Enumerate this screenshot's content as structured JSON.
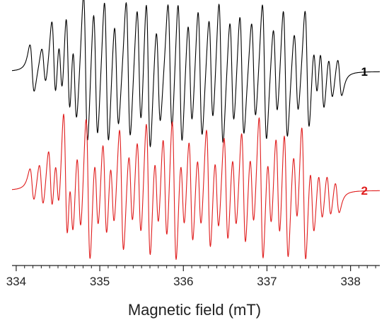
{
  "chart_data": {
    "type": "line",
    "title": "",
    "xlabel": "Magnetic field (mT)",
    "ylabel": "",
    "xlim": [
      333.95,
      338.35
    ],
    "xticks": [
      334,
      335,
      336,
      337,
      338
    ],
    "xtick_labels": [
      "334",
      "335",
      "336",
      "337",
      "338"
    ],
    "grid": false,
    "legend": "none",
    "series": [
      {
        "name": "1",
        "color": "#000000",
        "baseline_level": 0.74,
        "lines": [
          {
            "field": 334.19,
            "amp": 0.3
          },
          {
            "field": 334.33,
            "amp": 0.25
          },
          {
            "field": 334.45,
            "amp": 0.55
          },
          {
            "field": 334.53,
            "amp": 0.45
          },
          {
            "field": 334.62,
            "amp": 0.75
          },
          {
            "field": 334.7,
            "amp": 0.6
          },
          {
            "field": 334.83,
            "amp": 1.0
          },
          {
            "field": 334.95,
            "amp": 0.85
          },
          {
            "field": 335.08,
            "amp": 0.95
          },
          {
            "field": 335.2,
            "amp": 0.7
          },
          {
            "field": 335.34,
            "amp": 0.9
          },
          {
            "field": 335.47,
            "amp": 0.8
          },
          {
            "field": 335.58,
            "amp": 1.0
          },
          {
            "field": 335.7,
            "amp": 0.65
          },
          {
            "field": 335.84,
            "amp": 0.85
          },
          {
            "field": 335.96,
            "amp": 0.95
          },
          {
            "field": 336.08,
            "amp": 0.7
          },
          {
            "field": 336.2,
            "amp": 0.85
          },
          {
            "field": 336.33,
            "amp": 0.7
          },
          {
            "field": 336.45,
            "amp": 0.95
          },
          {
            "field": 336.58,
            "amp": 0.7
          },
          {
            "field": 336.7,
            "amp": 0.8
          },
          {
            "field": 336.84,
            "amp": 0.65
          },
          {
            "field": 336.97,
            "amp": 0.9
          },
          {
            "field": 337.1,
            "amp": 0.6
          },
          {
            "field": 337.22,
            "amp": 0.85
          },
          {
            "field": 337.35,
            "amp": 0.55
          },
          {
            "field": 337.48,
            "amp": 0.8
          },
          {
            "field": 337.58,
            "amp": 0.4
          },
          {
            "field": 337.66,
            "amp": 0.45
          },
          {
            "field": 337.76,
            "amp": 0.3
          },
          {
            "field": 337.87,
            "amp": 0.25
          }
        ]
      },
      {
        "name": "2",
        "color": "#e01e1e",
        "baseline_level": 0.26,
        "lines": [
          {
            "field": 334.19,
            "amp": 0.22
          },
          {
            "field": 334.3,
            "amp": 0.3
          },
          {
            "field": 334.41,
            "amp": 0.45
          },
          {
            "field": 334.49,
            "amp": 0.4
          },
          {
            "field": 334.59,
            "amp": 0.95
          },
          {
            "field": 334.66,
            "amp": 0.55
          },
          {
            "field": 334.75,
            "amp": 0.6
          },
          {
            "field": 334.86,
            "amp": 1.0
          },
          {
            "field": 334.96,
            "amp": 0.55
          },
          {
            "field": 335.06,
            "amp": 0.7
          },
          {
            "field": 335.15,
            "amp": 0.5
          },
          {
            "field": 335.26,
            "amp": 0.85
          },
          {
            "field": 335.37,
            "amp": 0.55
          },
          {
            "field": 335.47,
            "amp": 0.7
          },
          {
            "field": 335.58,
            "amp": 0.95
          },
          {
            "field": 335.68,
            "amp": 0.55
          },
          {
            "field": 335.78,
            "amp": 0.75
          },
          {
            "field": 335.89,
            "amp": 1.0
          },
          {
            "field": 335.99,
            "amp": 0.55
          },
          {
            "field": 336.09,
            "amp": 0.75
          },
          {
            "field": 336.19,
            "amp": 0.55
          },
          {
            "field": 336.3,
            "amp": 0.85
          },
          {
            "field": 336.4,
            "amp": 0.55
          },
          {
            "field": 336.51,
            "amp": 0.75
          },
          {
            "field": 336.61,
            "amp": 0.55
          },
          {
            "field": 336.72,
            "amp": 0.8
          },
          {
            "field": 336.82,
            "amp": 0.55
          },
          {
            "field": 336.93,
            "amp": 1.0
          },
          {
            "field": 337.03,
            "amp": 0.55
          },
          {
            "field": 337.13,
            "amp": 0.75
          },
          {
            "field": 337.23,
            "amp": 0.9
          },
          {
            "field": 337.34,
            "amp": 0.55
          },
          {
            "field": 337.44,
            "amp": 0.95
          },
          {
            "field": 337.54,
            "amp": 0.5
          },
          {
            "field": 337.64,
            "amp": 0.35
          },
          {
            "field": 337.74,
            "amp": 0.3
          },
          {
            "field": 337.84,
            "amp": 0.22
          }
        ]
      }
    ]
  }
}
